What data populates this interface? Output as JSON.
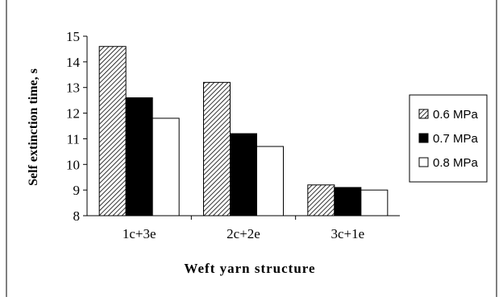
{
  "chart_data": {
    "type": "bar",
    "categories": [
      "1c+3e",
      "2c+2e",
      "3c+1e"
    ],
    "series": [
      {
        "name": "0.6 MPa",
        "values": [
          14.6,
          13.2,
          9.2
        ],
        "fill": "hatched"
      },
      {
        "name": "0.7 MPa",
        "values": [
          12.6,
          11.2,
          9.1
        ],
        "fill": "#000000"
      },
      {
        "name": "0.8 MPa",
        "values": [
          11.8,
          10.7,
          9.0
        ],
        "fill": "#ffffff"
      }
    ],
    "title": "",
    "xlabel": "Weft yarn structure",
    "ylabel": "Self extinction time,  s",
    "ylim": [
      8,
      15
    ],
    "yticks": [
      8,
      9,
      10,
      11,
      12,
      13,
      14,
      15
    ],
    "grid": false,
    "legend_position": "right"
  }
}
